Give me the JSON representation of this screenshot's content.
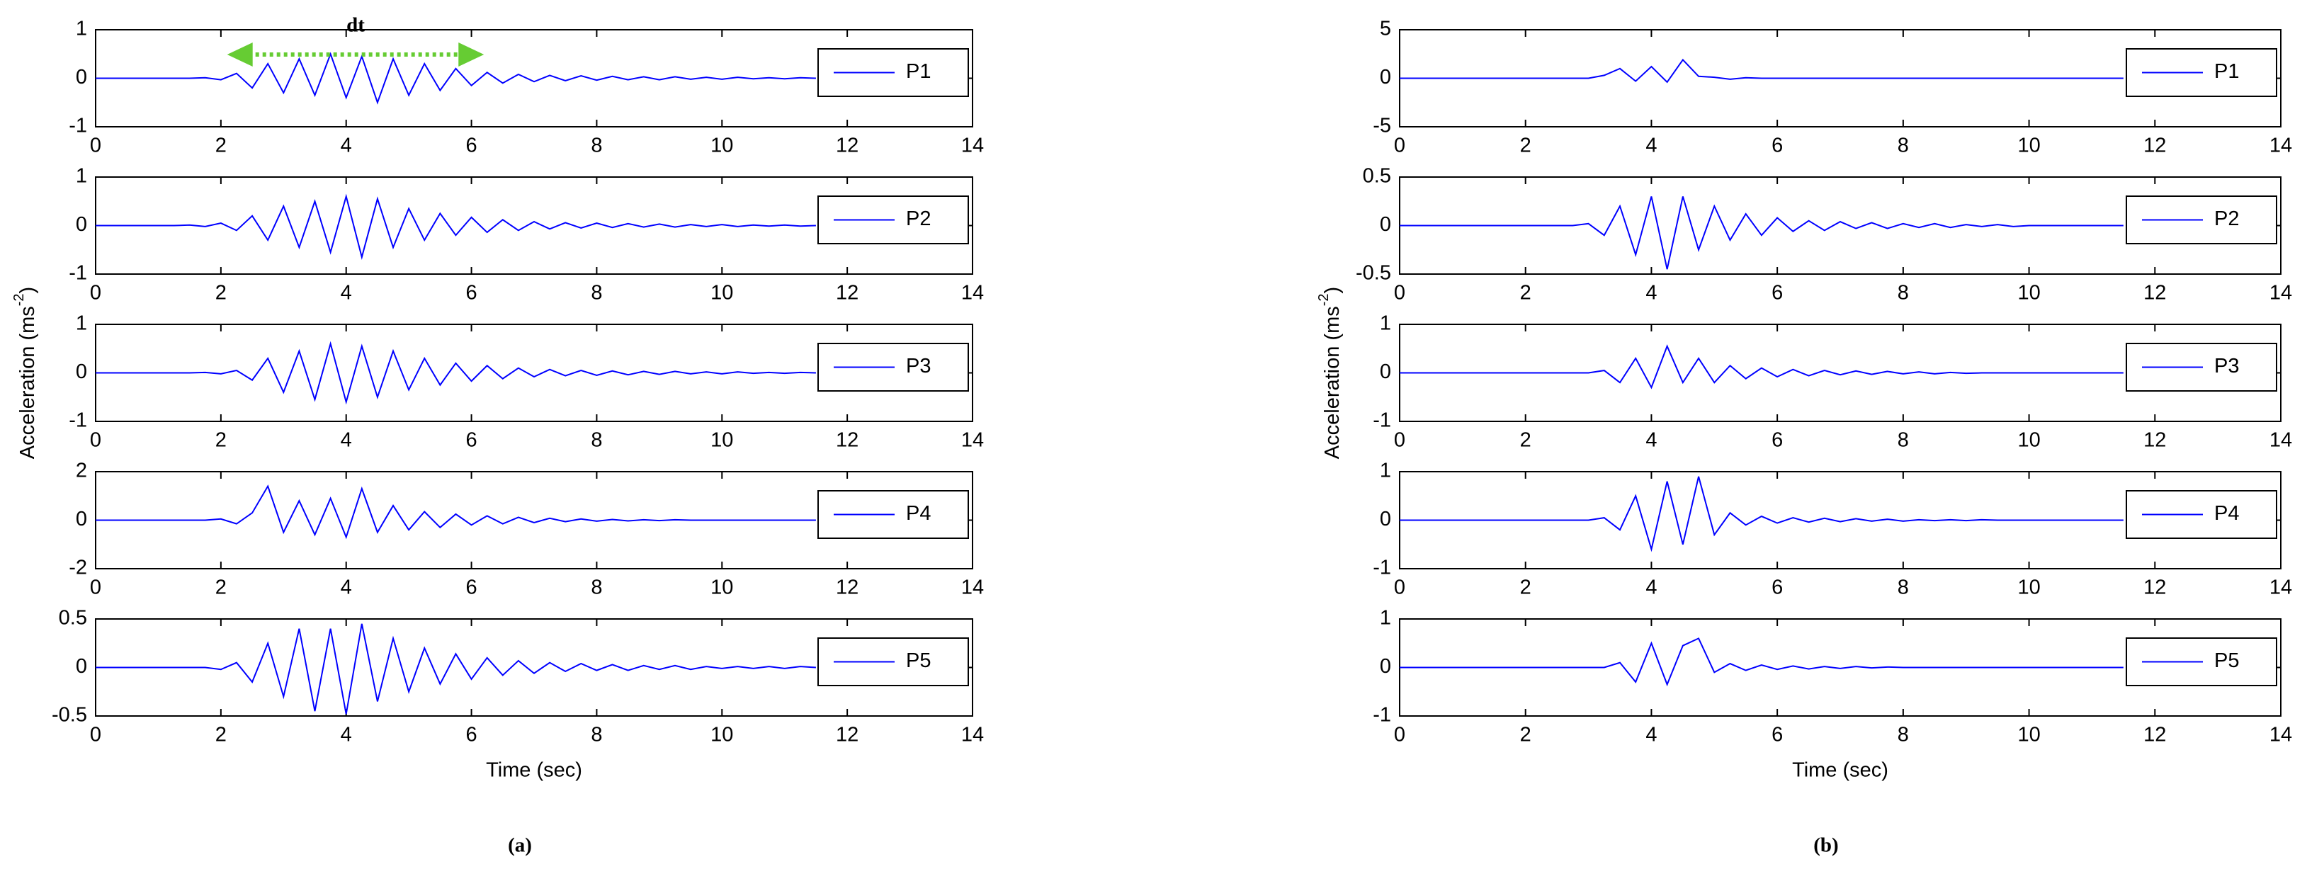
{
  "panels": [
    {
      "label": "(a)",
      "ylabel": [
        "Acceleration (ms",
        "-2",
        ")"
      ],
      "xlabel": "Time (sec)"
    },
    {
      "label": "(b)",
      "ylabel": [
        "Acceleration (ms",
        "-2",
        ")"
      ],
      "xlabel": "Time (sec)"
    }
  ],
  "chart_data": [
    {
      "type": "line",
      "legend": "upper right",
      "annotation": {
        "text": "dt",
        "color": "#66cc33",
        "x": [
          2.1,
          6.2
        ]
      },
      "x": [
        0,
        0.25,
        0.5,
        0.75,
        1,
        1.25,
        1.5,
        1.75,
        2,
        2.25,
        2.5,
        2.75,
        3,
        3.25,
        3.5,
        3.75,
        4,
        4.25,
        4.5,
        4.75,
        5,
        5.25,
        5.5,
        5.75,
        6,
        6.25,
        6.5,
        6.75,
        7,
        7.25,
        7.5,
        7.75,
        8,
        8.25,
        8.5,
        8.75,
        9,
        9.25,
        9.5,
        9.75,
        10,
        10.25,
        10.5,
        10.75,
        11,
        11.25,
        11.5
      ],
      "series": [
        {
          "name": "P1",
          "color": "#0000ff",
          "values": [
            0,
            0,
            0,
            0,
            0,
            0,
            0,
            0.01,
            -0.03,
            0.1,
            -0.2,
            0.3,
            -0.3,
            0.4,
            -0.35,
            0.5,
            -0.4,
            0.45,
            -0.5,
            0.4,
            -0.35,
            0.3,
            -0.25,
            0.2,
            -0.15,
            0.12,
            -0.1,
            0.08,
            -0.07,
            0.06,
            -0.05,
            0.05,
            -0.04,
            0.04,
            -0.03,
            0.03,
            -0.03,
            0.03,
            -0.02,
            0.02,
            -0.02,
            0.02,
            -0.01,
            0.01,
            -0.01,
            0.01,
            0
          ]
        }
      ],
      "xlim": [
        0,
        14
      ],
      "xticks": [
        0,
        2,
        4,
        6,
        8,
        10,
        12,
        14
      ],
      "ylim": [
        -1,
        1
      ],
      "yticks": [
        -1,
        0,
        1
      ]
    },
    {
      "type": "line",
      "legend": "upper right",
      "x": [
        0,
        0.25,
        0.5,
        0.75,
        1,
        1.25,
        1.5,
        1.75,
        2,
        2.25,
        2.5,
        2.75,
        3,
        3.25,
        3.5,
        3.75,
        4,
        4.25,
        4.5,
        4.75,
        5,
        5.25,
        5.5,
        5.75,
        6,
        6.25,
        6.5,
        6.75,
        7,
        7.25,
        7.5,
        7.75,
        8,
        8.25,
        8.5,
        8.75,
        9,
        9.25,
        9.5,
        9.75,
        10,
        10.25,
        10.5,
        10.75,
        11,
        11.25,
        11.5
      ],
      "series": [
        {
          "name": "P2",
          "color": "#0000ff",
          "values": [
            0,
            0,
            0,
            0,
            0,
            0,
            0.01,
            -0.02,
            0.05,
            -0.1,
            0.2,
            -0.3,
            0.4,
            -0.45,
            0.5,
            -0.55,
            0.6,
            -0.65,
            0.55,
            -0.45,
            0.35,
            -0.3,
            0.25,
            -0.2,
            0.17,
            -0.14,
            0.12,
            -0.1,
            0.08,
            -0.07,
            0.06,
            -0.05,
            0.05,
            -0.04,
            0.04,
            -0.03,
            0.03,
            -0.03,
            0.02,
            -0.02,
            0.02,
            -0.02,
            0.01,
            -0.01,
            0.01,
            -0.01,
            0
          ]
        }
      ],
      "xlim": [
        0,
        14
      ],
      "xticks": [
        0,
        2,
        4,
        6,
        8,
        10,
        12,
        14
      ],
      "ylim": [
        -1,
        1
      ],
      "yticks": [
        -1,
        0,
        1
      ]
    },
    {
      "type": "line",
      "legend": "upper right",
      "x": [
        0,
        0.25,
        0.5,
        0.75,
        1,
        1.25,
        1.5,
        1.75,
        2,
        2.25,
        2.5,
        2.75,
        3,
        3.25,
        3.5,
        3.75,
        4,
        4.25,
        4.5,
        4.75,
        5,
        5.25,
        5.5,
        5.75,
        6,
        6.25,
        6.5,
        6.75,
        7,
        7.25,
        7.5,
        7.75,
        8,
        8.25,
        8.5,
        8.75,
        9,
        9.25,
        9.5,
        9.75,
        10,
        10.25,
        10.5,
        10.75,
        11,
        11.25,
        11.5
      ],
      "series": [
        {
          "name": "P3",
          "color": "#0000ff",
          "values": [
            0,
            0,
            0,
            0,
            0,
            0,
            0,
            0.01,
            -0.02,
            0.05,
            -0.15,
            0.3,
            -0.4,
            0.45,
            -0.55,
            0.6,
            -0.6,
            0.55,
            -0.5,
            0.45,
            -0.35,
            0.3,
            -0.25,
            0.2,
            -0.17,
            0.15,
            -0.12,
            0.1,
            -0.08,
            0.07,
            -0.06,
            0.05,
            -0.05,
            0.04,
            -0.04,
            0.03,
            -0.03,
            0.03,
            -0.02,
            0.02,
            -0.02,
            0.02,
            -0.01,
            0.01,
            -0.01,
            0.01,
            0
          ]
        }
      ],
      "xlim": [
        0,
        14
      ],
      "xticks": [
        0,
        2,
        4,
        6,
        8,
        10,
        12,
        14
      ],
      "ylim": [
        -1,
        1
      ],
      "yticks": [
        -1,
        0,
        1
      ]
    },
    {
      "type": "line",
      "legend": "upper right",
      "x": [
        0,
        0.25,
        0.5,
        0.75,
        1,
        1.25,
        1.5,
        1.75,
        2,
        2.25,
        2.5,
        2.75,
        3,
        3.25,
        3.5,
        3.75,
        4,
        4.25,
        4.5,
        4.75,
        5,
        5.25,
        5.5,
        5.75,
        6,
        6.25,
        6.5,
        6.75,
        7,
        7.25,
        7.5,
        7.75,
        8,
        8.25,
        8.5,
        8.75,
        9,
        9.25,
        9.5,
        9.75,
        10,
        10.25,
        10.5,
        10.75,
        11,
        11.25,
        11.5
      ],
      "series": [
        {
          "name": "P4",
          "color": "#0000ff",
          "values": [
            0,
            0,
            0,
            0,
            0,
            0,
            0,
            0,
            0.05,
            -0.15,
            0.3,
            1.4,
            -0.5,
            0.8,
            -0.6,
            0.9,
            -0.7,
            1.3,
            -0.5,
            0.6,
            -0.4,
            0.35,
            -0.3,
            0.25,
            -0.2,
            0.18,
            -0.15,
            0.12,
            -0.1,
            0.08,
            -0.06,
            0.05,
            -0.04,
            0.03,
            -0.03,
            0.02,
            -0.02,
            0.02,
            0,
            0,
            0,
            0,
            0,
            0,
            0,
            0,
            0
          ]
        }
      ],
      "xlim": [
        0,
        14
      ],
      "xticks": [
        0,
        2,
        4,
        6,
        8,
        10,
        12,
        14
      ],
      "ylim": [
        -2,
        2
      ],
      "yticks": [
        -2,
        0,
        2
      ]
    },
    {
      "type": "line",
      "legend": "upper right",
      "x": [
        0,
        0.25,
        0.5,
        0.75,
        1,
        1.25,
        1.5,
        1.75,
        2,
        2.25,
        2.5,
        2.75,
        3,
        3.25,
        3.5,
        3.75,
        4,
        4.25,
        4.5,
        4.75,
        5,
        5.25,
        5.5,
        5.75,
        6,
        6.25,
        6.5,
        6.75,
        7,
        7.25,
        7.5,
        7.75,
        8,
        8.25,
        8.5,
        8.75,
        9,
        9.25,
        9.5,
        9.75,
        10,
        10.25,
        10.5,
        10.75,
        11,
        11.25,
        11.5
      ],
      "series": [
        {
          "name": "P5",
          "color": "#0000ff",
          "values": [
            0,
            0,
            0,
            0,
            0,
            0,
            0,
            0,
            -0.02,
            0.05,
            -0.15,
            0.25,
            -0.3,
            0.4,
            -0.45,
            0.4,
            -0.48,
            0.45,
            -0.35,
            0.3,
            -0.25,
            0.2,
            -0.17,
            0.14,
            -0.12,
            0.1,
            -0.08,
            0.07,
            -0.06,
            0.05,
            -0.04,
            0.04,
            -0.03,
            0.03,
            -0.03,
            0.02,
            -0.02,
            0.02,
            -0.02,
            0.01,
            -0.01,
            0.01,
            -0.01,
            0.01,
            -0.01,
            0.01,
            0
          ]
        }
      ],
      "xlim": [
        0,
        14
      ],
      "xticks": [
        0,
        2,
        4,
        6,
        8,
        10,
        12,
        14
      ],
      "ylim": [
        -0.5,
        0.5
      ],
      "yticks": [
        -0.5,
        0,
        0.5
      ]
    },
    {
      "type": "line",
      "legend": "upper right",
      "x": [
        0,
        0.25,
        0.5,
        0.75,
        1,
        1.25,
        1.5,
        1.75,
        2,
        2.25,
        2.5,
        2.75,
        3,
        3.25,
        3.5,
        3.75,
        4,
        4.25,
        4.5,
        4.75,
        5,
        5.25,
        5.5,
        5.75,
        6,
        6.25,
        6.5,
        6.75,
        7,
        7.25,
        7.5,
        7.75,
        8,
        8.25,
        8.5,
        8.75,
        9,
        9.25,
        9.5,
        9.75,
        10,
        10.25,
        10.5,
        10.75,
        11,
        11.25,
        11.5
      ],
      "series": [
        {
          "name": "P1",
          "color": "#0000ff",
          "values": [
            0,
            0,
            0,
            0,
            0,
            0,
            0,
            0,
            0,
            0,
            0,
            0,
            0,
            0.3,
            1.0,
            -0.3,
            1.2,
            -0.4,
            1.9,
            0.2,
            0.1,
            -0.1,
            0.05,
            0,
            0,
            0,
            0,
            0,
            0,
            0,
            0,
            0,
            0,
            0,
            0,
            0,
            0,
            0,
            0,
            0,
            0,
            0,
            0,
            0,
            0,
            0,
            0
          ]
        }
      ],
      "xlim": [
        0,
        14
      ],
      "xticks": [
        0,
        2,
        4,
        6,
        8,
        10,
        12,
        14
      ],
      "ylim": [
        -5,
        5
      ],
      "yticks": [
        -5,
        0,
        5
      ]
    },
    {
      "type": "line",
      "legend": "upper right",
      "x": [
        0,
        0.25,
        0.5,
        0.75,
        1,
        1.25,
        1.5,
        1.75,
        2,
        2.25,
        2.5,
        2.75,
        3,
        3.25,
        3.5,
        3.75,
        4,
        4.25,
        4.5,
        4.75,
        5,
        5.25,
        5.5,
        5.75,
        6,
        6.25,
        6.5,
        6.75,
        7,
        7.25,
        7.5,
        7.75,
        8,
        8.25,
        8.5,
        8.75,
        9,
        9.25,
        9.5,
        9.75,
        10,
        10.25,
        10.5,
        10.75,
        11,
        11.25,
        11.5
      ],
      "series": [
        {
          "name": "P2",
          "color": "#0000ff",
          "values": [
            0,
            0,
            0,
            0,
            0,
            0,
            0,
            0,
            0,
            0,
            0,
            0,
            0.02,
            -0.1,
            0.2,
            -0.3,
            0.3,
            -0.45,
            0.3,
            -0.25,
            0.2,
            -0.15,
            0.12,
            -0.1,
            0.08,
            -0.06,
            0.05,
            -0.05,
            0.04,
            -0.03,
            0.03,
            -0.03,
            0.02,
            -0.02,
            0.02,
            -0.02,
            0.01,
            -0.01,
            0.01,
            -0.01,
            0,
            0,
            0,
            0,
            0,
            0,
            0
          ]
        }
      ],
      "xlim": [
        0,
        14
      ],
      "xticks": [
        0,
        2,
        4,
        6,
        8,
        10,
        12,
        14
      ],
      "ylim": [
        -0.5,
        0.5
      ],
      "yticks": [
        -0.5,
        0,
        0.5
      ]
    },
    {
      "type": "line",
      "legend": "upper right",
      "x": [
        0,
        0.25,
        0.5,
        0.75,
        1,
        1.25,
        1.5,
        1.75,
        2,
        2.25,
        2.5,
        2.75,
        3,
        3.25,
        3.5,
        3.75,
        4,
        4.25,
        4.5,
        4.75,
        5,
        5.25,
        5.5,
        5.75,
        6,
        6.25,
        6.5,
        6.75,
        7,
        7.25,
        7.5,
        7.75,
        8,
        8.25,
        8.5,
        8.75,
        9,
        9.25,
        9.5,
        9.75,
        10,
        10.25,
        10.5,
        10.75,
        11,
        11.25,
        11.5
      ],
      "series": [
        {
          "name": "P3",
          "color": "#0000ff",
          "values": [
            0,
            0,
            0,
            0,
            0,
            0,
            0,
            0,
            0,
            0,
            0,
            0,
            0,
            0.05,
            -0.2,
            0.3,
            -0.3,
            0.55,
            -0.2,
            0.3,
            -0.2,
            0.15,
            -0.12,
            0.1,
            -0.08,
            0.07,
            -0.06,
            0.05,
            -0.04,
            0.04,
            -0.03,
            0.03,
            -0.02,
            0.02,
            -0.02,
            0.01,
            -0.01,
            0,
            0,
            0,
            0,
            0,
            0,
            0,
            0,
            0,
            0
          ]
        }
      ],
      "xlim": [
        0,
        14
      ],
      "xticks": [
        0,
        2,
        4,
        6,
        8,
        10,
        12,
        14
      ],
      "ylim": [
        -1,
        1
      ],
      "yticks": [
        -1,
        0,
        1
      ]
    },
    {
      "type": "line",
      "legend": "upper right",
      "x": [
        0,
        0.25,
        0.5,
        0.75,
        1,
        1.25,
        1.5,
        1.75,
        2,
        2.25,
        2.5,
        2.75,
        3,
        3.25,
        3.5,
        3.75,
        4,
        4.25,
        4.5,
        4.75,
        5,
        5.25,
        5.5,
        5.75,
        6,
        6.25,
        6.5,
        6.75,
        7,
        7.25,
        7.5,
        7.75,
        8,
        8.25,
        8.5,
        8.75,
        9,
        9.25,
        9.5,
        9.75,
        10,
        10.25,
        10.5,
        10.75,
        11,
        11.25,
        11.5
      ],
      "series": [
        {
          "name": "P4",
          "color": "#0000ff",
          "values": [
            0,
            0,
            0,
            0,
            0,
            0,
            0,
            0,
            0,
            0,
            0,
            0,
            0,
            0.05,
            -0.2,
            0.5,
            -0.6,
            0.8,
            -0.5,
            0.9,
            -0.3,
            0.15,
            -0.1,
            0.08,
            -0.06,
            0.05,
            -0.04,
            0.04,
            -0.03,
            0.03,
            -0.02,
            0.02,
            -0.02,
            0.01,
            -0.01,
            0.01,
            -0.01,
            0.01,
            0,
            0,
            0,
            0,
            0,
            0,
            0,
            0,
            0
          ]
        }
      ],
      "xlim": [
        0,
        14
      ],
      "xticks": [
        0,
        2,
        4,
        6,
        8,
        10,
        12,
        14
      ],
      "ylim": [
        -1,
        1
      ],
      "yticks": [
        -1,
        0,
        1
      ]
    },
    {
      "type": "line",
      "legend": "upper right",
      "x": [
        0,
        0.25,
        0.5,
        0.75,
        1,
        1.25,
        1.5,
        1.75,
        2,
        2.25,
        2.5,
        2.75,
        3,
        3.25,
        3.5,
        3.75,
        4,
        4.25,
        4.5,
        4.75,
        5,
        5.25,
        5.5,
        5.75,
        6,
        6.25,
        6.5,
        6.75,
        7,
        7.25,
        7.5,
        7.75,
        8,
        8.25,
        8.5,
        8.75,
        9,
        9.25,
        9.5,
        9.75,
        10,
        10.25,
        10.5,
        10.75,
        11,
        11.25,
        11.5
      ],
      "series": [
        {
          "name": "P5",
          "color": "#0000ff",
          "values": [
            0,
            0,
            0,
            0,
            0,
            0,
            0,
            0,
            0,
            0,
            0,
            0,
            0,
            0,
            0.1,
            -0.3,
            0.5,
            -0.35,
            0.45,
            0.6,
            -0.1,
            0.08,
            -0.06,
            0.05,
            -0.04,
            0.03,
            -0.03,
            0.02,
            -0.02,
            0.02,
            -0.01,
            0.01,
            0,
            0,
            0,
            0,
            0,
            0,
            0,
            0,
            0,
            0,
            0,
            0,
            0,
            0,
            0
          ]
        }
      ],
      "xlim": [
        0,
        14
      ],
      "xticks": [
        0,
        2,
        4,
        6,
        8,
        10,
        12,
        14
      ],
      "ylim": [
        -1,
        1
      ],
      "yticks": [
        -1,
        0,
        1
      ]
    }
  ]
}
